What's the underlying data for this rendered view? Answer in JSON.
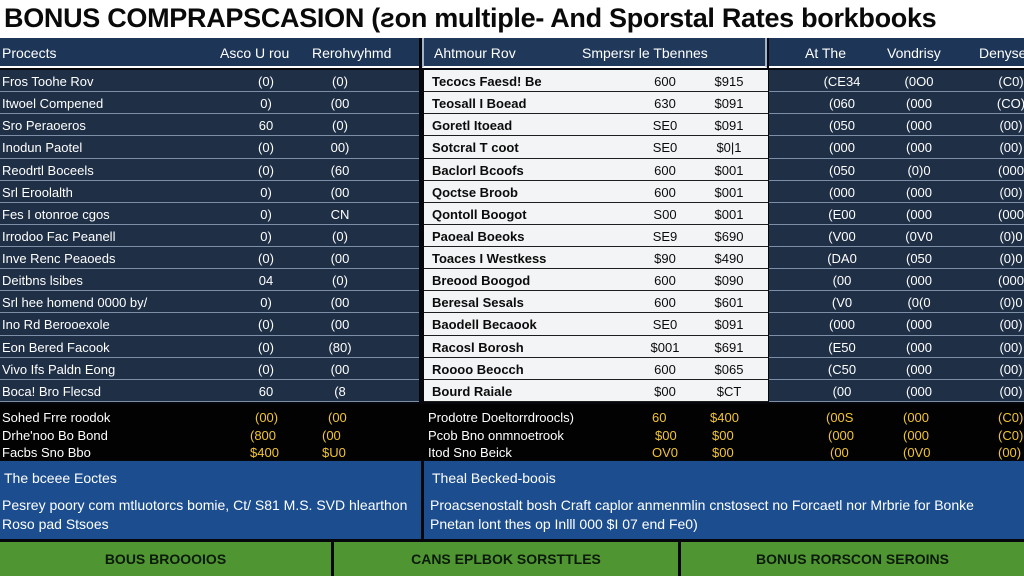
{
  "title": "BONUS COMPRAPSCASION (ƨon multiple- And Sporstal Rates borkbooks",
  "header": {
    "left": [
      "Procects",
      "Asco U rou",
      "Rerohvyhmd"
    ],
    "mid": [
      "Ahtmour Rov",
      "Smpersr le Tbennes"
    ],
    "right": [
      "At The",
      "Vondrisy",
      "Denyse"
    ]
  },
  "left_rows": [
    [
      "Fros Toohe Rov",
      "(0)",
      "(0)"
    ],
    [
      "Itwoel Compened",
      "0)",
      "(00"
    ],
    [
      "Sro Peraoeros",
      "60",
      "(0)"
    ],
    [
      "Inodun Paotel",
      "(0)",
      "00)"
    ],
    [
      "Reodrtl Boceels",
      "(0)",
      "(60"
    ],
    [
      "Srl Eroolalth",
      "0)",
      "(00"
    ],
    [
      "Fes I otonroe cgos",
      "0)",
      "CN"
    ],
    [
      "Irrodoo Fac Peanell",
      "0)",
      "(0)"
    ],
    [
      "Inve Renc Peaoeds",
      "(0)",
      "(00"
    ],
    [
      "Deitbns lsibes",
      "04",
      "(0)"
    ],
    [
      "Srl hee homend 0000 by/",
      "0)",
      "(00"
    ],
    [
      "Ino Rd Berooexole",
      "(0)",
      "(00"
    ],
    [
      "Eon Bered Facook",
      "(0)",
      "(80)"
    ],
    [
      "Vivo Ifs Paldn Eong",
      "(0)",
      "(00"
    ],
    [
      "Boca! Bro Flecsd",
      "60",
      "(8"
    ]
  ],
  "mid_rows": [
    [
      "Tecocs Faesd! Be",
      "600",
      "$915"
    ],
    [
      "Teosall I Boead",
      "630",
      "$091"
    ],
    [
      "Goretl Itoead",
      "SE0",
      "$091"
    ],
    [
      "Sotcral T coot",
      "SE0",
      "$0|1"
    ],
    [
      "Baclorl Bcoofs",
      "600",
      "$001"
    ],
    [
      "Qoctse Broob",
      "600",
      "$001"
    ],
    [
      "Qontoll Boogot",
      "S00",
      "$001"
    ],
    [
      "Paoeal Boeoks",
      "SE9",
      "$690"
    ],
    [
      "Toaces I Westkess",
      "$90",
      "$490"
    ],
    [
      "Breood Boogod",
      "600",
      "$090"
    ],
    [
      "Beresal Sesals",
      "600",
      "$601"
    ],
    [
      "Baodell Becaook",
      "SE0",
      "$091"
    ],
    [
      "Racosl Borosh",
      "$001",
      "$691"
    ],
    [
      "Roooo Beocch",
      "600",
      "$065"
    ],
    [
      "Bourd Raiale",
      "$00",
      "$CT"
    ]
  ],
  "right_rows": [
    [
      "(CE34",
      "(0O0",
      "(C0)"
    ],
    [
      "(060",
      "(000",
      "(CO)"
    ],
    [
      "(050",
      "(000",
      "(00)"
    ],
    [
      "(000",
      "(000",
      "(00)"
    ],
    [
      "(050",
      "(0)0",
      "(000"
    ],
    [
      "(000",
      "(000",
      "(00)"
    ],
    [
      "(E00",
      "(000",
      "(000"
    ],
    [
      "(V00",
      "(0V0",
      "(0)0"
    ],
    [
      "(DA0",
      "(050",
      "(0)0"
    ],
    [
      "(00",
      "(000",
      "(000"
    ],
    [
      "(V0",
      "(0(0",
      "(0)0"
    ],
    [
      "(000",
      "(000",
      "(00)"
    ],
    [
      "(E50",
      "(000",
      "(00)"
    ],
    [
      "(C50",
      "(000",
      "(00)"
    ],
    [
      "(00",
      "(000",
      "(00)"
    ]
  ],
  "summary": {
    "rows": [
      {
        "label": "Sohed Frre roodok",
        "a": "(00)",
        "b": "(00",
        "mid": "Prodotre Doeltorrdroocls)",
        "ma": "60",
        "mb": "$400",
        "r1": "(00S",
        "r2": "(000",
        "r3": "(C0)"
      },
      {
        "label": "Drhe'noo Bo Bond",
        "a": "(800",
        "b": "(00",
        "mid": "Pcob Bno onmnoetrook",
        "ma": "$00",
        "mb": "$00",
        "r1": "(000",
        "r2": "(000",
        "r3": "(C0)"
      },
      {
        "label": "Facbs Sno Bbo",
        "a": "$400",
        "b": "$U0",
        "mid": "Itod Sno Beick",
        "ma": "OV0",
        "mb": "$00",
        "r1": "(00",
        "r2": "(0V0",
        "r3": "(00)"
      }
    ]
  },
  "notes": {
    "left": {
      "title": "The bceee Eoctes",
      "line1": "Pesrey poory com mtluotorcs bomie, Ct/ S81 M.S. SVD hlearthon",
      "line2": "Roso pad Stsoes"
    },
    "right": {
      "title": "Theal Becked-boois",
      "line1": "Proacsenostalt bosh Craft caplor anmenmlin cnstosect no Forcaetl nor Mrbrie for Bonke",
      "line2": "Pnetan lont thes op Inlll 000 $I 07 end Fe0)"
    }
  },
  "footer": {
    "b1": "BOUS BROOOIOS",
    "b2": "CANS EPLBOK SORSTTLES",
    "b3": "BONUS RORSCON SEROINS"
  },
  "colors": {
    "header": "#1d3556",
    "panel": "#1f2f46",
    "notes": "#1c4e8f",
    "footer": "#4f9632",
    "gold": "#f2c531"
  }
}
